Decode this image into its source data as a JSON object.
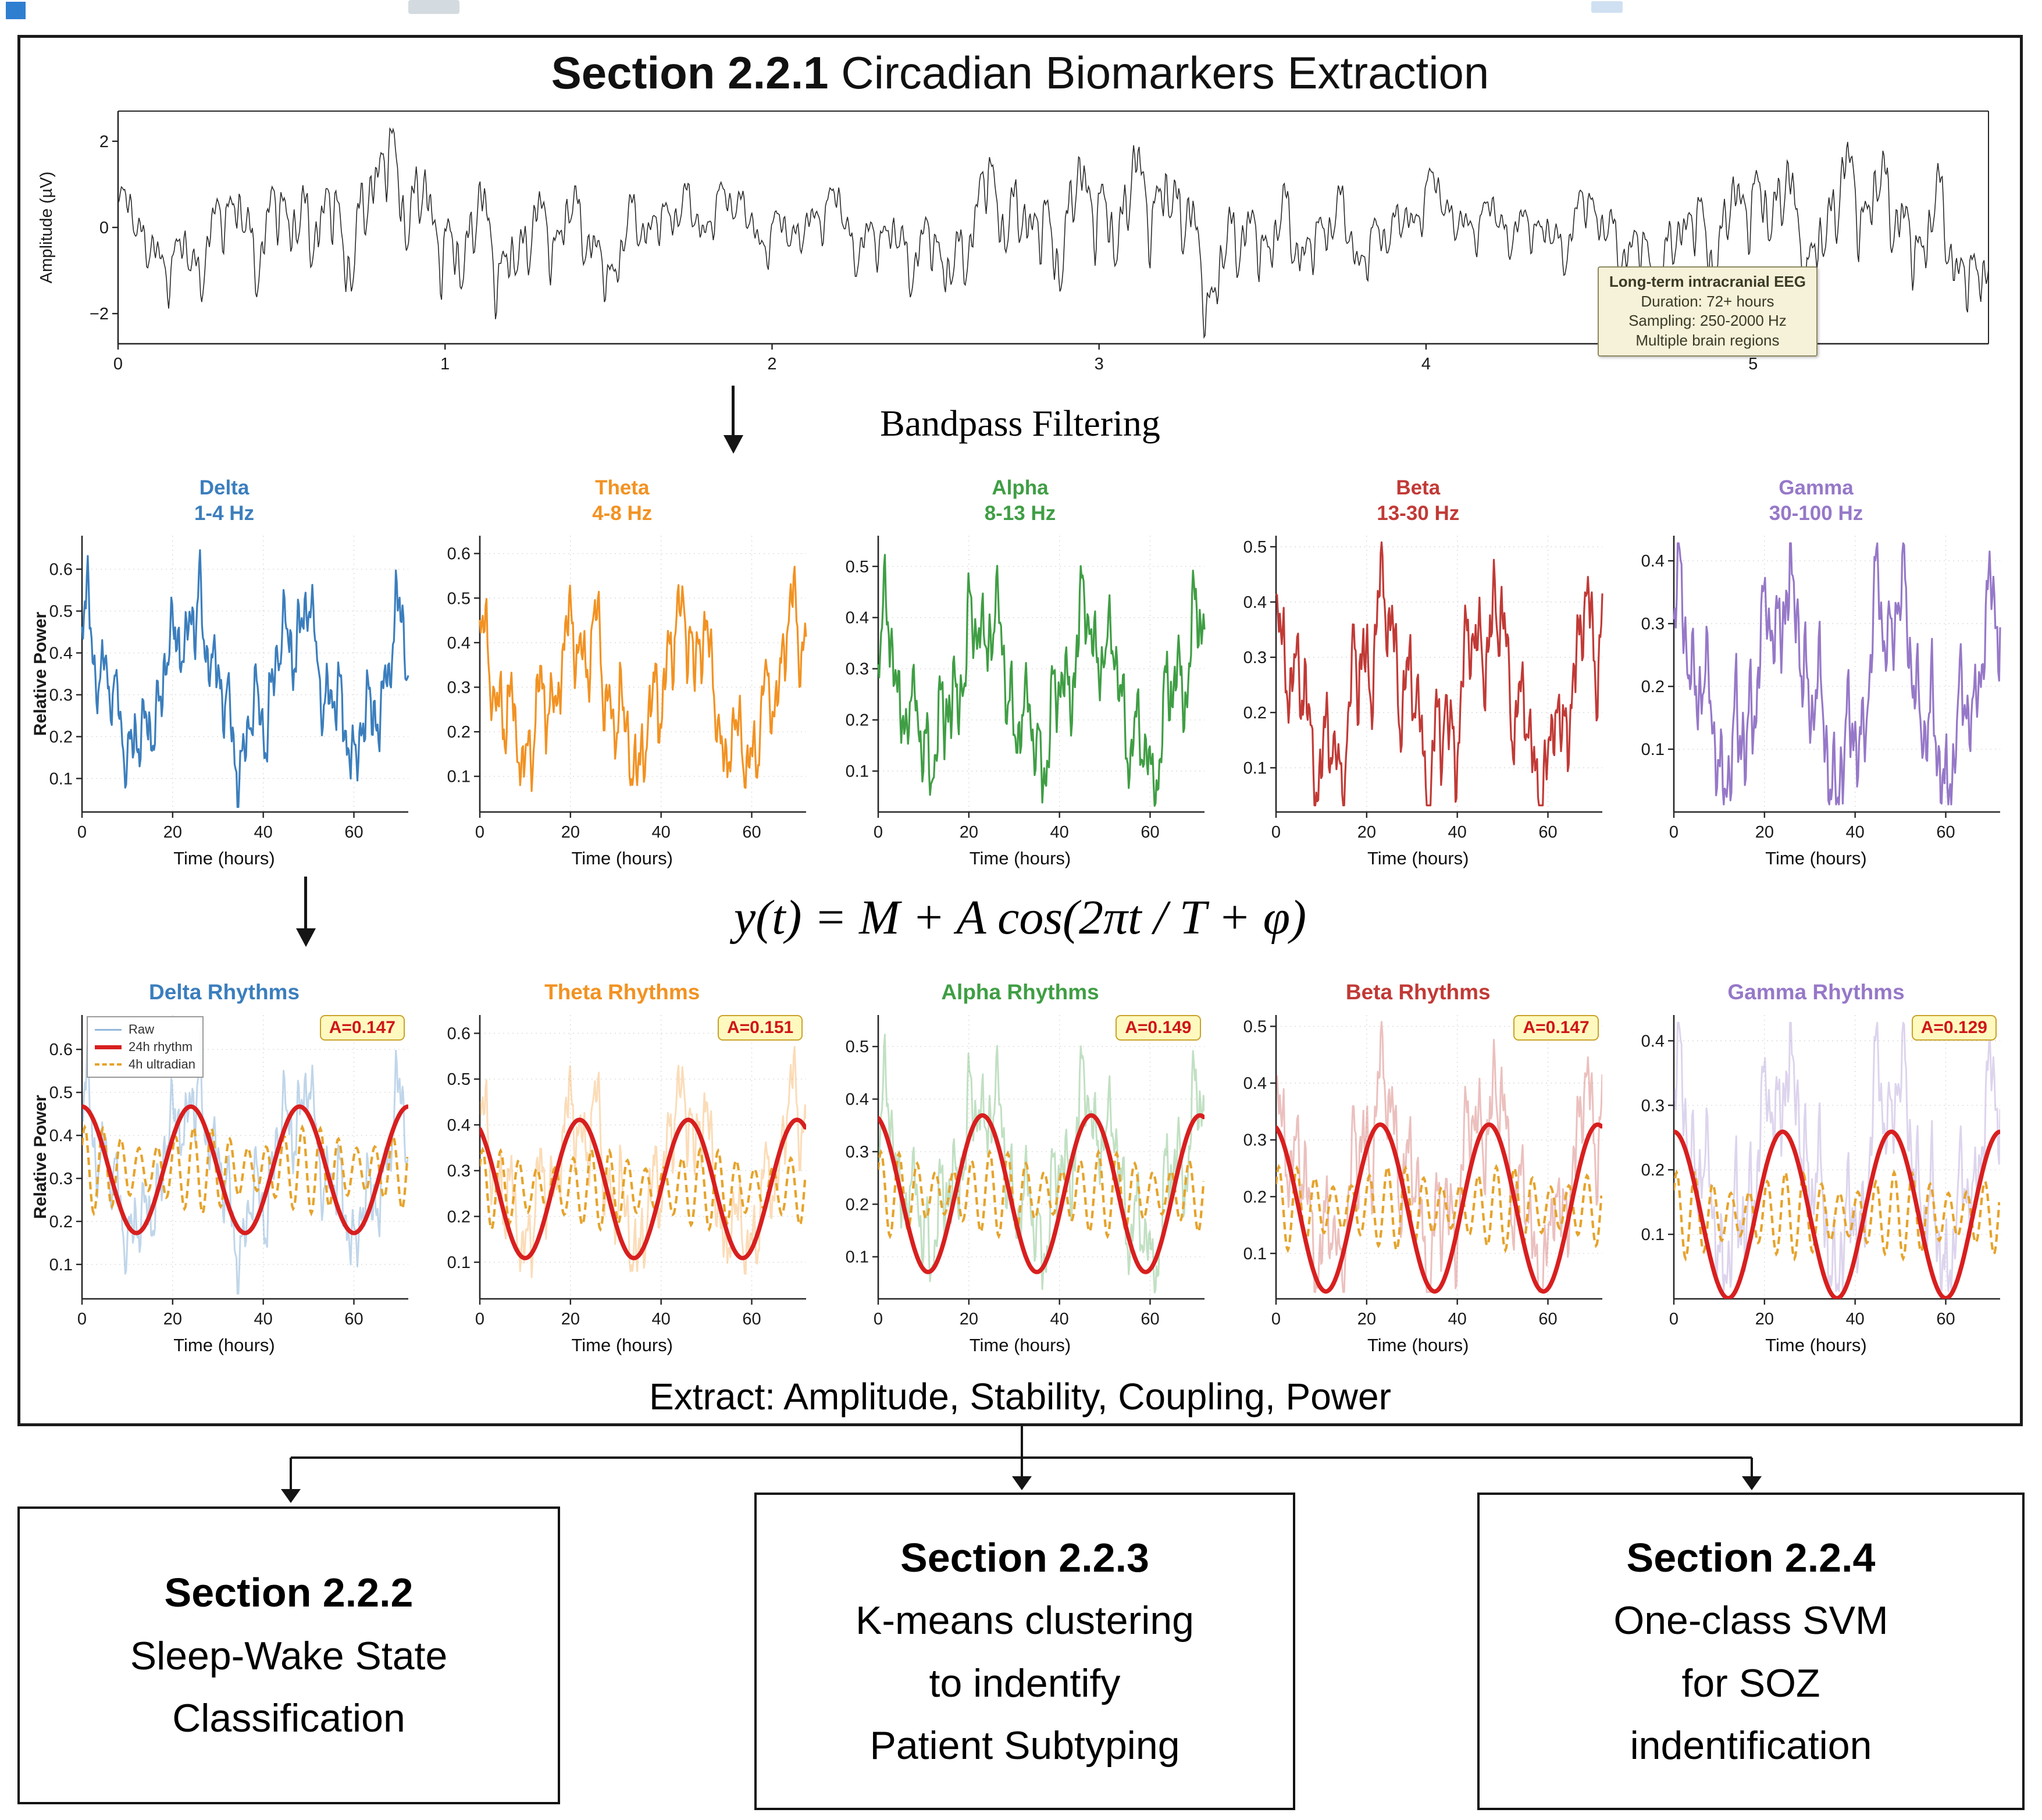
{
  "title": {
    "bold": "Section 2.2.1",
    "rest": " Circadian Biomarkers Extraction"
  },
  "bandpass_label": "Bandpass Filtering",
  "formula": "y(t) = M + A cos(2πt / T + φ)",
  "extract_text": "Extract: Amplitude, Stability, Coupling, Power",
  "sections": [
    {
      "title": "Section 2.2.2",
      "lines": [
        "Sleep-Wake State",
        "Classification"
      ]
    },
    {
      "title": "Section 2.2.3",
      "lines": [
        "K-means clustering",
        "to indentify",
        "Patient Subtyping"
      ]
    },
    {
      "title": "Section 2.2.4",
      "lines": [
        "One-class SVM",
        "for SOZ",
        "indentification"
      ]
    }
  ],
  "chart_data": {
    "type": "line",
    "xlabel": "Time (hours)",
    "ylabel": "Relative Power",
    "xticks": [
      0,
      20,
      40,
      60
    ],
    "xlim": [
      0,
      72
    ],
    "raw_eeg": {
      "ylabel": "Amplitude (µV)",
      "yticks": [
        -2,
        0,
        2
      ],
      "ylim": [
        -2.7,
        2.7
      ],
      "xticks": [
        0,
        1,
        2,
        3,
        4,
        5
      ],
      "xlim": [
        0,
        5.72
      ],
      "color": "#2b2b2b",
      "seed": 13,
      "annotation": [
        "Long-term intracranial EEG",
        "Duration: 72+ hours",
        "Sampling: 250-2000 Hz",
        "Multiple brain regions"
      ]
    },
    "bands": [
      {
        "name": "Delta",
        "band": "1-4 Hz",
        "color": "#3b7ebd",
        "seed": 101,
        "mesor": 0.33,
        "amp": 0.15,
        "acro": 0,
        "noise": 0.09,
        "yticks": [
          0.1,
          0.2,
          0.3,
          0.4,
          0.5,
          0.6
        ],
        "ylim": [
          0.02,
          0.68
        ]
      },
      {
        "name": "Theta",
        "band": "4-8 Hz",
        "color": "#f29222",
        "seed": 202,
        "mesor": 0.29,
        "amp": 0.14,
        "acro": 22,
        "noise": 0.09,
        "yticks": [
          0.1,
          0.2,
          0.3,
          0.4,
          0.5,
          0.6
        ],
        "ylim": [
          0.02,
          0.64
        ]
      },
      {
        "name": "Alpha",
        "band": "8-13 Hz",
        "color": "#3f9e44",
        "seed": 303,
        "mesor": 0.26,
        "amp": 0.13,
        "acro": 23,
        "noise": 0.08,
        "yticks": [
          0.1,
          0.2,
          0.3,
          0.4,
          0.5
        ],
        "ylim": [
          0.02,
          0.56
        ]
      },
      {
        "name": "Beta",
        "band": "13-30 Hz",
        "color": "#c13a36",
        "seed": 404,
        "mesor": 0.23,
        "amp": 0.13,
        "acro": 23,
        "noise": 0.08,
        "yticks": [
          0.1,
          0.2,
          0.3,
          0.4,
          0.5
        ],
        "ylim": [
          0.02,
          0.52
        ]
      },
      {
        "name": "Gamma",
        "band": "30-100 Hz",
        "color": "#9678c8",
        "seed": 505,
        "mesor": 0.2,
        "amp": 0.12,
        "acro": 0,
        "noise": 0.07,
        "yticks": [
          0.1,
          0.2,
          0.3,
          0.4
        ],
        "ylim": [
          0.0,
          0.44
        ]
      }
    ],
    "rhythms": [
      {
        "title": "Delta Rhythms",
        "A_label": "A=0.147",
        "mesor": 0.32,
        "amplitude": 0.147,
        "period_h": 24,
        "acrophase_h": 0,
        "ultradian_period_h": 4,
        "ultradian_amp": 0.075
      },
      {
        "title": "Theta Rhythms",
        "A_label": "A=0.151",
        "mesor": 0.26,
        "amplitude": 0.151,
        "period_h": 24,
        "acrophase_h": 22,
        "ultradian_period_h": 4,
        "ultradian_amp": 0.065
      },
      {
        "title": "Alpha Rhythms",
        "A_label": "A=0.149",
        "mesor": 0.22,
        "amplitude": 0.149,
        "period_h": 24,
        "acrophase_h": 23,
        "ultradian_period_h": 4,
        "ultradian_amp": 0.06
      },
      {
        "title": "Beta Rhythms",
        "A_label": "A=0.147",
        "mesor": 0.18,
        "amplitude": 0.147,
        "period_h": 24,
        "acrophase_h": 23,
        "ultradian_period_h": 4,
        "ultradian_amp": 0.055
      },
      {
        "title": "Gamma Rhythms",
        "A_label": "A=0.129",
        "mesor": 0.13,
        "amplitude": 0.129,
        "period_h": 24,
        "acrophase_h": 0,
        "ultradian_period_h": 4,
        "ultradian_amp": 0.05
      }
    ],
    "legend": [
      "Raw",
      "24h rhythm",
      "4h ultradian"
    ],
    "fit_color": "#d81f1f",
    "ultradian_color": "#e6a32b"
  }
}
